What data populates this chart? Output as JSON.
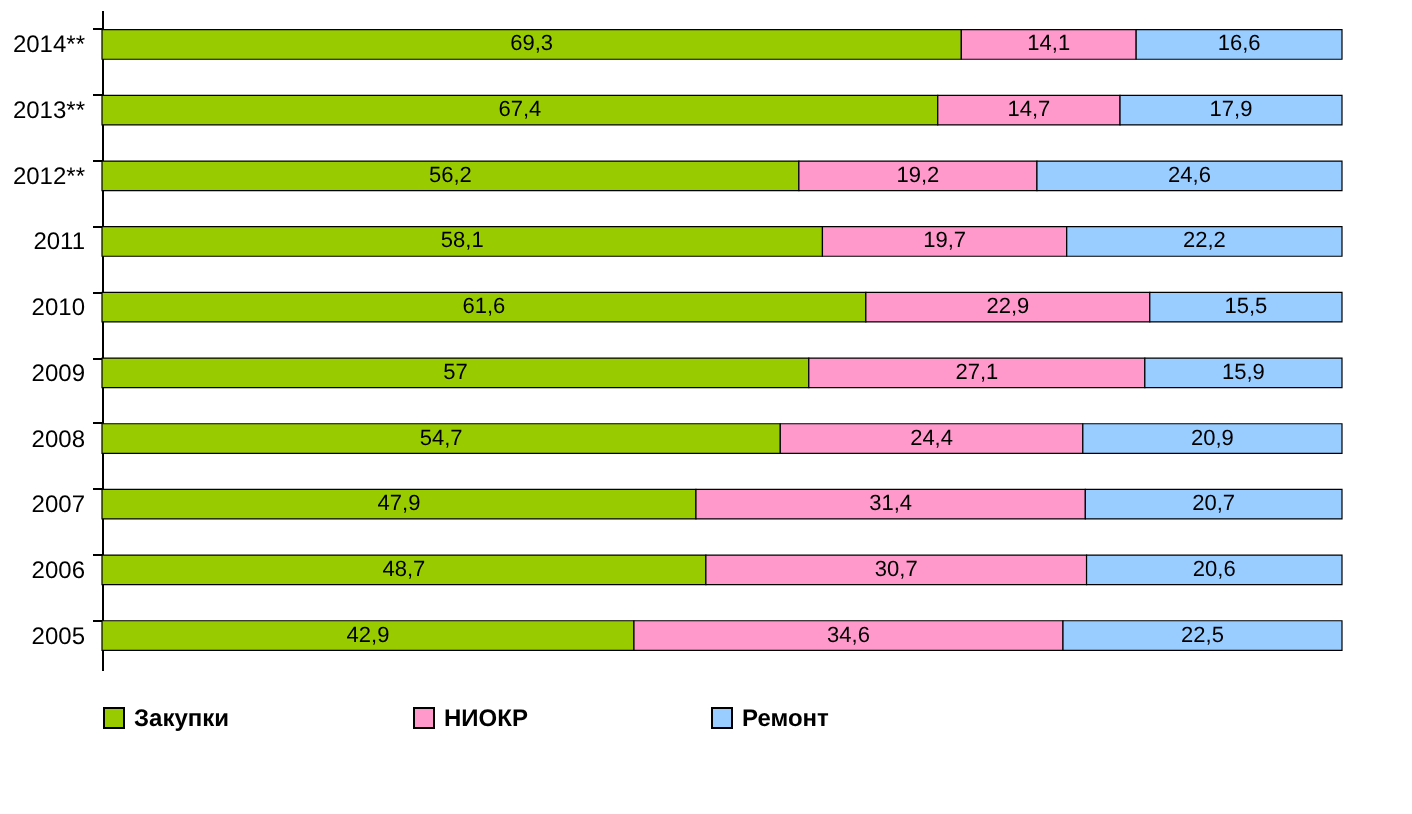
{
  "chart_data": {
    "type": "bar",
    "orientation": "horizontal",
    "stacked": true,
    "legend": "bottom",
    "grid": false,
    "categories": [
      "2014**",
      "2013**",
      "2012**",
      "2011",
      "2010",
      "2009",
      "2008",
      "2007",
      "2006",
      "2005"
    ],
    "series": [
      {
        "name": "Закупки",
        "color": "#99cc00",
        "values": [
          69.3,
          67.4,
          56.2,
          58.1,
          61.6,
          57,
          54.7,
          47.9,
          48.7,
          42.9
        ],
        "value_labels": [
          "69,3",
          "67,4",
          "56,2",
          "58,1",
          "61,6",
          "57",
          "54,7",
          "47,9",
          "48,7",
          "42,9"
        ]
      },
      {
        "name": "НИОКР",
        "color": "#ff99cc",
        "values": [
          14.1,
          14.7,
          19.2,
          19.7,
          22.9,
          27.1,
          24.4,
          31.4,
          30.7,
          34.6
        ],
        "value_labels": [
          "14,1",
          "14,7",
          "19,2",
          "19,7",
          "22,9",
          "27,1",
          "24,4",
          "31,4",
          "30,7",
          "34,6"
        ]
      },
      {
        "name": "Ремонт",
        "color": "#99ccff",
        "values": [
          16.6,
          17.9,
          24.6,
          22.2,
          15.5,
          15.9,
          20.9,
          20.7,
          20.6,
          22.5
        ],
        "value_labels": [
          "16,6",
          "17,9",
          "24,6",
          "22,2",
          "15,5",
          "15,9",
          "20,9",
          "20,7",
          "20,6",
          "22,5"
        ]
      }
    ]
  }
}
